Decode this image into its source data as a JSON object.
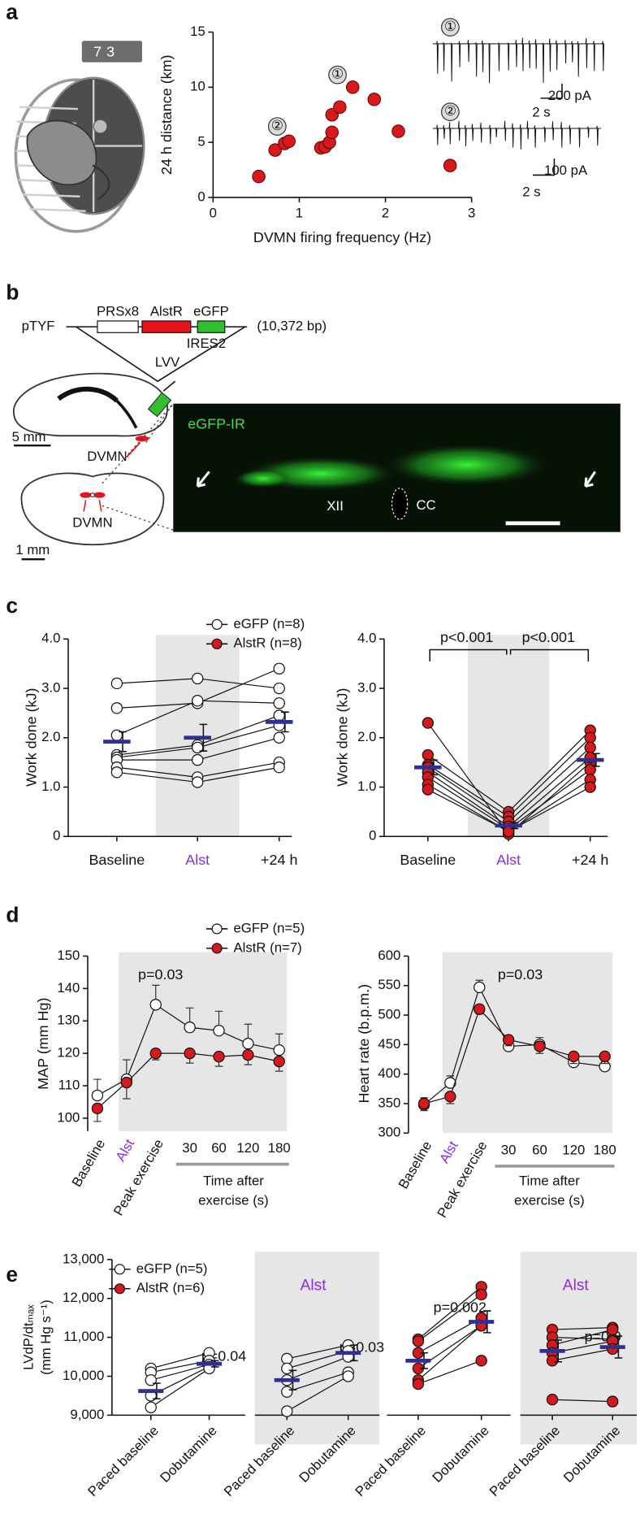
{
  "panels": [
    "a",
    "b",
    "c",
    "d",
    "e"
  ],
  "diagram_a": {
    "counter": "73"
  },
  "diagram_b": {
    "vector": "pTYF",
    "promoter": "PRSx8",
    "receptor": "AlstR",
    "reporter": "eGFP",
    "size": "(10,372 bp)",
    "linker": "IRES2",
    "virus": "LVV",
    "scale_sagittal": "5 mm",
    "region_sagittal": "DVMN",
    "region_coronal": "DVMN",
    "scale_coronal": "1 mm",
    "stain": "eGFP-IR",
    "nucleus": "XII",
    "canal": "CC"
  },
  "chart_data": [
    {
      "type": "scatter",
      "xlabel": "DVMN firing frequency (Hz)",
      "ylabel": "24 h distance (km)",
      "x": [
        0.53,
        0.72,
        0.83,
        0.88,
        1.25,
        1.3,
        1.35,
        1.38,
        1.38,
        1.47,
        1.62,
        1.87,
        2.15,
        2.75
      ],
      "values": [
        1.9,
        4.3,
        4.9,
        5.1,
        4.5,
        4.6,
        5.0,
        5.9,
        7.5,
        8.2,
        10.0,
        8.9,
        6.0,
        2.9
      ],
      "color": "#d7191c",
      "xlim": [
        0,
        3
      ],
      "ylim": [
        0,
        15
      ],
      "xticks": [
        0,
        1,
        2,
        3
      ],
      "yticks": [
        0,
        5,
        10,
        15
      ],
      "annotations": [
        "①",
        "②",
        "①",
        "②",
        "200 pA",
        "2 s",
        "100 pA",
        "2 s"
      ]
    },
    {
      "type": "paired",
      "ylabel": "Work done (kJ)",
      "categories": [
        "Baseline",
        "Alst",
        "+24 h"
      ],
      "highlight_index": 1,
      "highlight_color": "#8b2be2",
      "shade": [
        1,
        1
      ],
      "ylim": [
        0,
        4
      ],
      "yticks": [
        0,
        {
          "value": 1,
          "label": "1.0"
        },
        {
          "value": 2,
          "label": "2.0"
        },
        {
          "value": 3,
          "label": "3.0"
        },
        {
          "value": 4,
          "label": "4.0"
        }
      ],
      "legend": [
        {
          "label": "eGFP (n=8)",
          "color": "#ffffff"
        },
        {
          "label": "AlstR (n=8)",
          "color": "#d7191c"
        }
      ],
      "series": [
        {
          "color": "#ffffff",
          "subjects": [
            [
              3.1,
              3.2,
              3.0
            ],
            [
              2.6,
              2.7,
              3.4
            ],
            [
              2.05,
              2.75,
              2.7
            ],
            [
              1.65,
              1.85,
              2.45
            ],
            [
              1.6,
              1.8,
              2.25
            ],
            [
              1.55,
              1.55,
              2.0
            ],
            [
              1.4,
              1.2,
              1.5
            ],
            [
              1.3,
              1.1,
              1.4
            ]
          ],
          "mean": [
            1.92,
            2.0,
            2.32
          ],
          "sem": [
            0.2,
            0.27,
            0.2
          ]
        }
      ]
    },
    {
      "type": "paired",
      "ylabel": "Work done (kJ)",
      "categories": [
        "Baseline",
        "Alst",
        "+24 h"
      ],
      "highlight_index": 1,
      "highlight_color": "#8b2be2",
      "shade": [
        1,
        1
      ],
      "ylim": [
        0,
        4
      ],
      "yticks": [
        0,
        {
          "value": 1,
          "label": "1.0"
        },
        {
          "value": 2,
          "label": "2.0"
        },
        {
          "value": 3,
          "label": "3.0"
        },
        {
          "value": 4,
          "label": "4.0"
        }
      ],
      "annotations": [
        "p<0.001",
        "p<0.001"
      ],
      "series": [
        {
          "color": "#d7191c",
          "subjects": [
            [
              2.3,
              0.05,
              1.5
            ],
            [
              1.65,
              0.5,
              2.15
            ],
            [
              1.45,
              0.4,
              2.0
            ],
            [
              1.4,
              0.3,
              1.8
            ],
            [
              1.3,
              0.2,
              1.6
            ],
            [
              1.2,
              0.15,
              1.35
            ],
            [
              1.05,
              0.1,
              1.15
            ],
            [
              0.95,
              0.1,
              1.0
            ]
          ],
          "mean": [
            1.4,
            0.22,
            1.55
          ],
          "sem": [
            0.15,
            0.06,
            0.13
          ]
        }
      ]
    },
    {
      "type": "line",
      "ylabel": "MAP (mm Hg)",
      "categories": [
        "Baseline",
        "Alst",
        "Peak exercise",
        "30",
        "60",
        "120",
        "180"
      ],
      "highlight_index": 1,
      "highlight_color": "#8b2be2",
      "shade": [
        1,
        6
      ],
      "xlabel_lines": [
        "Time after",
        "exercise (s)"
      ],
      "ylim": [
        96,
        150
      ],
      "yticks": [
        100,
        110,
        120,
        130,
        140,
        150
      ],
      "legend": [
        {
          "label": "eGFP (n=5)",
          "color": "#ffffff"
        },
        {
          "label": "AlstR (n=7)",
          "color": "#d7191c"
        }
      ],
      "annotations": [
        "p=0.03"
      ],
      "series": [
        {
          "color": "#ffffff",
          "values": [
            107,
            112,
            135,
            128,
            127,
            123,
            121
          ],
          "errors": [
            5,
            6,
            6,
            6,
            6,
            6,
            5
          ]
        },
        {
          "color": "#d7191c",
          "values": [
            103,
            111,
            120,
            120,
            119,
            119.5,
            117.5
          ],
          "errors": [
            4,
            5,
            2,
            3,
            3,
            3,
            3
          ]
        }
      ]
    },
    {
      "type": "line",
      "ylabel": "Heart rate (b.p.m.)",
      "categories": [
        "Baseline",
        "Alst",
        "Peak exercise",
        "30",
        "60",
        "120",
        "180"
      ],
      "highlight_index": 1,
      "highlight_color": "#8b2be2",
      "shade": [
        1,
        6
      ],
      "xlabel_lines": [
        "Time after",
        "exercise (s)"
      ],
      "ylim": [
        300,
        600
      ],
      "yticks": [
        300,
        350,
        400,
        450,
        500,
        550,
        600
      ],
      "annotations": [
        "p=0.03"
      ],
      "series": [
        {
          "color": "#ffffff",
          "values": [
            348,
            385,
            547,
            447,
            450,
            420,
            413
          ],
          "errors": [
            12,
            12,
            12,
            12,
            12,
            12,
            10
          ]
        },
        {
          "color": "#d7191c",
          "values": [
            350,
            362,
            510,
            458,
            447,
            430,
            430
          ],
          "errors": [
            12,
            12,
            8,
            10,
            12,
            12,
            12
          ]
        }
      ]
    },
    {
      "type": "paired",
      "ylabel_lines": [
        "LVdP/dtₘₐₓ",
        "(mm Hg s⁻¹)"
      ],
      "categories": [
        "Paced baseline",
        "Dobutamine"
      ],
      "ylim": [
        9000,
        13000
      ],
      "yticks": [
        {
          "value": 9000,
          "label": "9,000"
        },
        {
          "value": 10000,
          "label": "10,000"
        },
        {
          "value": 11000,
          "label": "11,000"
        },
        {
          "value": 12000,
          "label": "12,000"
        },
        {
          "value": 13000,
          "label": "13,000"
        }
      ],
      "legend": [
        {
          "label": "eGFP (n=5)",
          "color": "#ffffff"
        },
        {
          "label": "AlstR (n=6)",
          "color": "#d7191c"
        }
      ],
      "annotations": [
        "p=0.04"
      ],
      "series": [
        {
          "color": "#ffffff",
          "subjects": [
            [
              10200,
              10600
            ],
            [
              10100,
              10400
            ],
            [
              9900,
              10300
            ],
            [
              9500,
              10250
            ],
            [
              9200,
              10200
            ]
          ],
          "mean": [
            9620,
            10320
          ],
          "sem": [
            200,
            80
          ]
        }
      ]
    },
    {
      "type": "paired",
      "title": "Alst",
      "highlight_color": "#8b2be2",
      "shaded": true,
      "categories": [
        "Paced baseline",
        "Dobutamine"
      ],
      "ylim": [
        9000,
        13000
      ],
      "annotations": [
        "p=0.03"
      ],
      "series": [
        {
          "color": "#ffffff",
          "subjects": [
            [
              10450,
              10800
            ],
            [
              10200,
              10650
            ],
            [
              9900,
              10500
            ],
            [
              9600,
              10100
            ],
            [
              9100,
              10000
            ]
          ],
          "mean": [
            9900,
            10600
          ],
          "sem": [
            250,
            200
          ]
        }
      ]
    },
    {
      "type": "paired",
      "categories": [
        "Paced baseline",
        "Dobutamine"
      ],
      "ylim": [
        9000,
        13000
      ],
      "annotations": [
        "p=0.002"
      ],
      "series": [
        {
          "color": "#d7191c",
          "subjects": [
            [
              10950,
              12300
            ],
            [
              10900,
              12100
            ],
            [
              10600,
              11500
            ],
            [
              10200,
              11300
            ],
            [
              9900,
              11300
            ],
            [
              9800,
              10400
            ]
          ],
          "mean": [
            10400,
            11400
          ],
          "sem": [
            200,
            280
          ]
        }
      ]
    },
    {
      "type": "paired",
      "title": "Alst",
      "highlight_color": "#8b2be2",
      "shaded": true,
      "categories": [
        "Paced baseline",
        "Dobutamine"
      ],
      "ylim": [
        9000,
        13000
      ],
      "annotations": [
        "p=0.9"
      ],
      "series": [
        {
          "color": "#d7191c",
          "subjects": [
            [
              11200,
              11250
            ],
            [
              11000,
              10950
            ],
            [
              10800,
              11200
            ],
            [
              10600,
              10900
            ],
            [
              10400,
              10700
            ],
            [
              9400,
              9350
            ]
          ],
          "mean": [
            10650,
            10750
          ],
          "sem": [
            280,
            280
          ]
        }
      ]
    }
  ]
}
